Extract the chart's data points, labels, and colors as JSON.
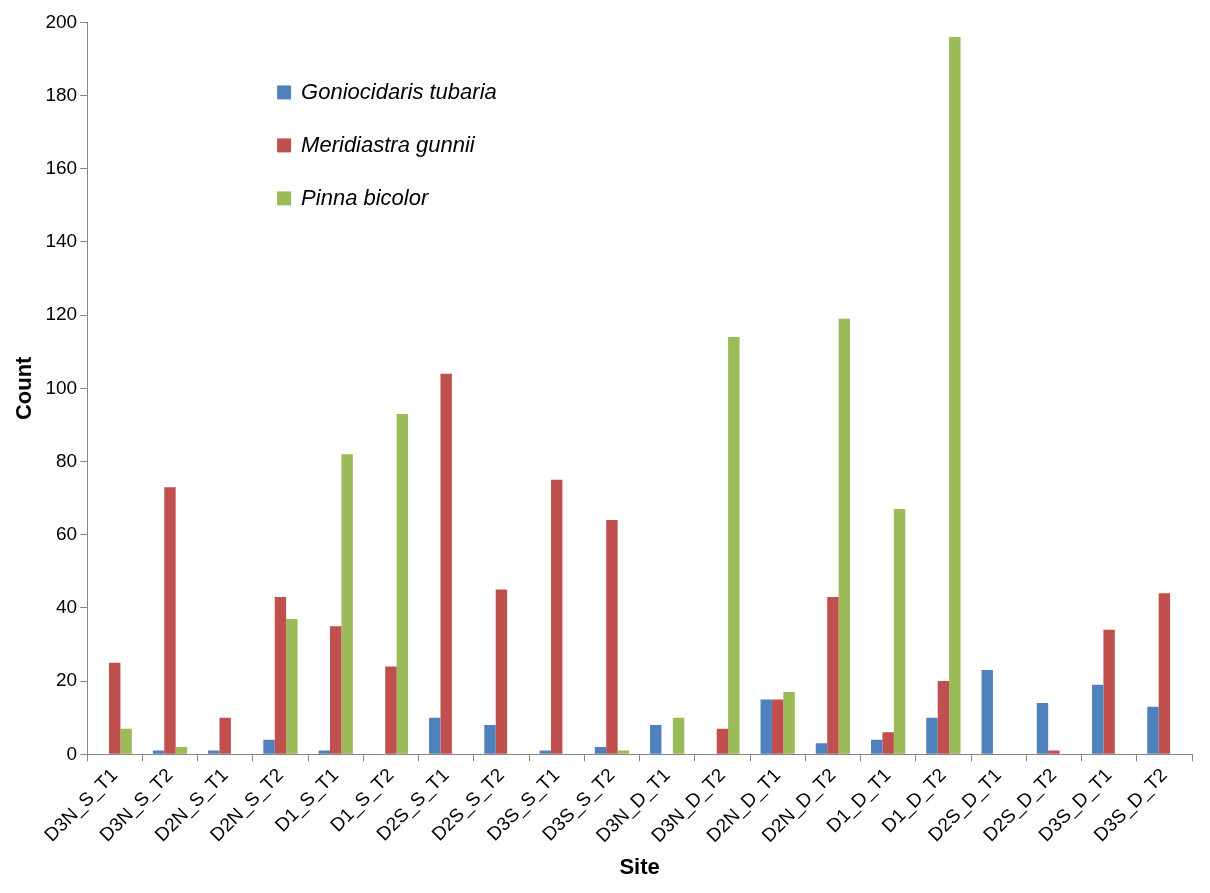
{
  "chart_data": {
    "type": "bar",
    "xlabel": "Site",
    "ylabel": "Count",
    "categories": [
      "D3N_S_T1",
      "D3N_S_T2",
      "D2N_S_T1",
      "D2N_S_T2",
      "D1_S_T1",
      "D1_S_T2",
      "D2S_S_T1",
      "D2S_S_T2",
      "D3S_S_T1",
      "D3S_S_T2",
      "D3N_D_T1",
      "D3N_D_T2",
      "D2N_D_T1",
      "D2N_D_T2",
      "D1_D_T1",
      "D1_D_T2",
      "D2S_D_T1",
      "D2S_D_T2",
      "D3S_D_T1",
      "D3S_D_T2"
    ],
    "series": [
      {
        "name": "Goniocidaris tubaria",
        "color": "#4f81bd",
        "values": [
          0,
          1,
          1,
          4,
          1,
          0,
          10,
          8,
          1,
          2,
          8,
          0,
          15,
          3,
          4,
          10,
          23,
          14,
          19,
          13
        ]
      },
      {
        "name": "Meridiastra gunnii",
        "color": "#c0504d",
        "values": [
          25,
          73,
          10,
          43,
          35,
          24,
          104,
          45,
          75,
          64,
          0,
          7,
          15,
          43,
          6,
          20,
          0,
          1,
          34,
          44
        ]
      },
      {
        "name": "Pinna bicolor",
        "color": "#9bbb59",
        "values": [
          7,
          2,
          0,
          37,
          82,
          93,
          0,
          0,
          0,
          1,
          10,
          114,
          17,
          119,
          67,
          196,
          0,
          0,
          0,
          0
        ]
      }
    ],
    "ylim": [
      0,
      200
    ],
    "yticks": [
      0,
      20,
      40,
      60,
      80,
      100,
      120,
      140,
      160,
      180,
      200
    ],
    "grid": false,
    "legend": "top left"
  }
}
